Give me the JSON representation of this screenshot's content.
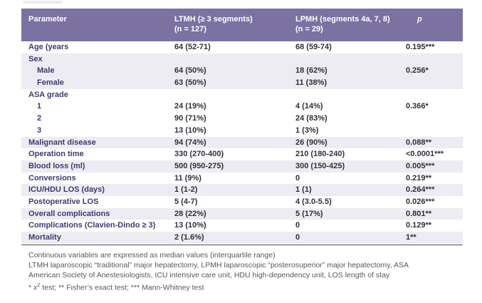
{
  "colors": {
    "header_bg": "#7b72a2",
    "row_shade": "#edecf2",
    "label_color": "#3c3b6e",
    "value_color": "#2f3037",
    "footnote_color": "#57585a"
  },
  "table": {
    "header": {
      "col1": "Parameter",
      "col2_line1": "LTMH (≥ 3 segments)",
      "col2_line2": "(n = 127)",
      "col3_line1": "LPMH (segments 4a, 7, 8)",
      "col3_line2": "(n = 29)",
      "col4": "p"
    },
    "rows": [
      {
        "label": "Age (years",
        "indent": false,
        "shaded": false,
        "ltmh": "64 (52-71)",
        "lpmh": "68 (59-74)",
        "p": "0.195***"
      },
      {
        "label": "Sex",
        "indent": false,
        "shaded": true,
        "ltmh": "",
        "lpmh": "",
        "p": ""
      },
      {
        "label": "Male",
        "indent": true,
        "shaded": true,
        "ltmh": "64 (50%)",
        "lpmh": "18 (62%)",
        "p": "0.256*"
      },
      {
        "label": "Female",
        "indent": true,
        "shaded": true,
        "ltmh": "63 (50%)",
        "lpmh": "11 (38%)",
        "p": ""
      },
      {
        "label": "ASA grade",
        "indent": false,
        "shaded": false,
        "ltmh": "",
        "lpmh": "",
        "p": ""
      },
      {
        "label": "1",
        "indent": true,
        "shaded": false,
        "ltmh": "24 (19%)",
        "lpmh": "4 (14%)",
        "p": "0.366*"
      },
      {
        "label": "2",
        "indent": true,
        "shaded": false,
        "ltmh": "90 (71%)",
        "lpmh": "24 (83%)",
        "p": ""
      },
      {
        "label": "3",
        "indent": true,
        "shaded": false,
        "ltmh": "13 (10%)",
        "lpmh": "1 (3%)",
        "p": ""
      },
      {
        "label": "Malignant disease",
        "indent": false,
        "shaded": true,
        "ltmh": "94 (74%)",
        "lpmh": "26 (90%)",
        "p": "0.088**"
      },
      {
        "label": "Operation time",
        "indent": false,
        "shaded": false,
        "ltmh": "330 (270-400)",
        "lpmh": "210 (180-240)",
        "p": "<0.0001***"
      },
      {
        "label": "Blood loss (ml)",
        "indent": false,
        "shaded": true,
        "ltmh": "500 (950-275)",
        "lpmh": "300 (150-425)",
        "p": "0.005***"
      },
      {
        "label": "Conversions",
        "indent": false,
        "shaded": false,
        "ltmh": "11 (9%)",
        "lpmh": "0",
        "p": "0.219**"
      },
      {
        "label": "ICU/HDU LOS (days)",
        "indent": false,
        "shaded": true,
        "ltmh": "1 (1-2)",
        "lpmh": "1 (1)",
        "p": "0.264***"
      },
      {
        "label": "Postoperative LOS",
        "indent": false,
        "shaded": false,
        "ltmh": "5 (4-7)",
        "lpmh": "4 (3.0-5.5)",
        "p": "0.026***"
      },
      {
        "label": "Overall complications",
        "indent": false,
        "shaded": true,
        "ltmh": "28 (22%)",
        "lpmh": "5 (17%)",
        "p": "0.801**"
      },
      {
        "label": "Complications (Clavien-Dindo ≥ 3)",
        "indent": false,
        "shaded": false,
        "ltmh": "13 (10%)",
        "lpmh": "0",
        "p": "0.129**"
      },
      {
        "label": "Mortality",
        "indent": false,
        "shaded": true,
        "ltmh": "2 (1.6%)",
        "lpmh": "0",
        "p": "1**"
      }
    ]
  },
  "footnotes": {
    "line1": "Continuous variables are expressed as median values (interquartile range)",
    "line2": "LTMH laparoscopic “traditional” major hepatectomy, LPMH laparoscopic “posterosuperior” major hepatectomy, ASA",
    "line3": "American Society of Anestesiologists, ICU intensive care unit, HDU high-dependency unit, LOS length of stay",
    "sig_prefix": "* ",
    "sig_chi": "x",
    "sig_sup": "2",
    "sig_rest": " test; ** Fisher’s exact test; *** Mann-Whitney test"
  }
}
